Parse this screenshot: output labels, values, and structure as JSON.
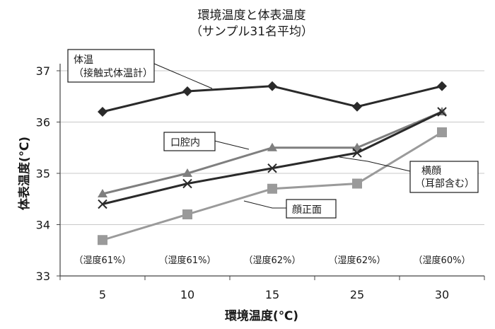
{
  "chart_data": {
    "type": "line",
    "title_line1": "環境温度と体表温度",
    "title_line2": "（サンプル31名平均）",
    "xlabel": "環境温度(℃)",
    "ylabel": "体表温度(℃)",
    "categories": [
      "5",
      "10",
      "15",
      "25",
      "30"
    ],
    "humidity_labels": [
      "（湿度61%）",
      "（湿度61%）",
      "（湿度62%）",
      "（湿度62%）",
      "（湿度60%）"
    ],
    "ylim": [
      33,
      37
    ],
    "yticks": [
      "33",
      "34",
      "35",
      "36",
      "37"
    ],
    "grid": true,
    "series": [
      {
        "key": "body",
        "label_line1": "体温",
        "label_line2": "（接触式体温計）",
        "values": [
          36.2,
          36.6,
          36.7,
          36.3,
          36.7
        ],
        "color": "#2a2a2a",
        "marker": "diamond"
      },
      {
        "key": "mouth",
        "label_line1": "口腔内",
        "label_line2": "",
        "values": [
          34.6,
          35.0,
          35.5,
          35.5,
          36.2
        ],
        "color": "#7f7f7f",
        "marker": "triangle"
      },
      {
        "key": "temple",
        "label_line1": "横顔",
        "label_line2": "（耳部含む）",
        "values": [
          34.4,
          34.8,
          35.1,
          35.4,
          36.2
        ],
        "color": "#2a2a2a",
        "marker": "x"
      },
      {
        "key": "forehead",
        "label_line1": "顔正面",
        "label_line2": "",
        "values": [
          33.7,
          34.2,
          34.7,
          34.8,
          35.8
        ],
        "color": "#9a9a9a",
        "marker": "square"
      }
    ]
  }
}
